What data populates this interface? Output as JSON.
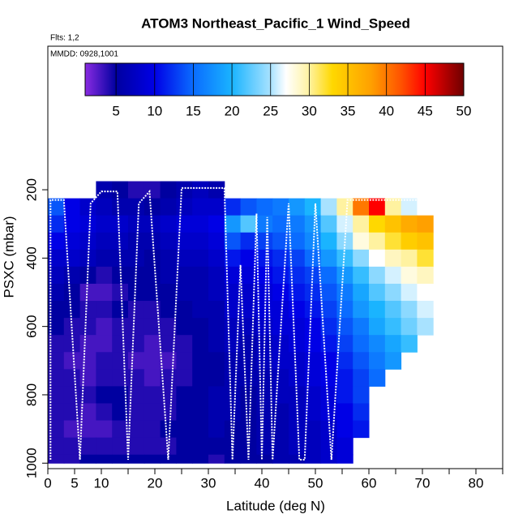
{
  "chart_data": {
    "type": "heatmap",
    "title": "ATOM3 Northeast_Pacific_1 Wind_Speed",
    "subtitle": "Flts: 1,2",
    "annotation": "MMDD: 0928,1001",
    "x_label": "Latitude (deg N)",
    "y_label": "PSXC (mbar)",
    "xlim": [
      0,
      85
    ],
    "ylim": [
      1016,
      -220
    ],
    "xticks": [
      0,
      5,
      10,
      20,
      30,
      40,
      50,
      60,
      70,
      80
    ],
    "xminor_ticks": [
      15,
      25,
      35,
      45,
      55,
      65,
      75,
      85
    ],
    "yticks": [
      200,
      400,
      600,
      800,
      1000
    ],
    "lat_edges": [
      0,
      3,
      6,
      9,
      12,
      15,
      18,
      21,
      24,
      27,
      30,
      33,
      36,
      39,
      42,
      45,
      48,
      51,
      54,
      57,
      60,
      63,
      66,
      69,
      72
    ],
    "pressure_edges": [
      175,
      225,
      275,
      325,
      375,
      425,
      475,
      525,
      575,
      625,
      675,
      725,
      775,
      825,
      875,
      925,
      975,
      1000
    ],
    "values": [
      [
        null,
        null,
        null,
        6,
        5,
        4,
        4,
        5,
        6,
        7,
        6,
        null,
        null,
        null,
        null,
        null,
        null,
        null,
        null,
        null,
        null,
        null,
        null,
        null
      ],
      [
        14,
        10,
        8,
        7,
        6,
        6,
        5,
        6,
        7,
        8,
        8,
        12,
        14,
        15,
        16,
        18,
        20,
        25,
        30,
        40,
        45,
        30,
        26,
        27
      ],
      [
        12,
        10,
        9,
        8,
        8,
        7,
        7,
        8,
        9,
        9,
        10,
        18,
        22,
        16,
        15,
        16,
        18,
        22,
        26,
        30,
        33,
        35,
        37,
        38
      ],
      [
        10,
        9,
        8,
        7,
        7,
        6,
        6,
        7,
        8,
        8,
        9,
        14,
        12,
        13,
        14,
        15,
        17,
        20,
        24,
        28,
        30,
        32,
        34,
        35
      ],
      [
        8,
        8,
        7,
        6,
        6,
        6,
        5,
        6,
        7,
        7,
        8,
        11,
        10,
        11,
        12,
        13,
        15,
        18,
        21,
        24,
        27,
        29,
        30,
        32
      ],
      [
        7,
        6,
        5,
        4,
        5,
        5,
        5,
        6,
        6,
        6,
        7,
        9,
        9,
        10,
        11,
        12,
        13,
        15,
        18,
        21,
        24,
        26,
        28,
        29
      ],
      [
        6,
        5,
        3,
        3,
        4,
        5,
        5,
        5,
        6,
        6,
        7,
        8,
        8,
        9,
        10,
        11,
        12,
        14,
        16,
        19,
        22,
        24,
        26,
        27
      ],
      [
        5,
        5,
        4,
        4,
        5,
        4,
        4,
        5,
        5,
        6,
        6,
        8,
        8,
        9,
        9,
        10,
        11,
        13,
        15,
        18,
        20,
        22,
        24,
        26
      ],
      [
        5,
        4,
        4,
        3,
        4,
        4,
        4,
        4,
        5,
        5,
        6,
        7,
        7,
        8,
        9,
        9,
        10,
        12,
        14,
        16,
        19,
        21,
        23,
        25
      ],
      [
        4,
        4,
        3,
        3,
        4,
        4,
        3,
        4,
        4,
        5,
        6,
        7,
        6,
        7,
        8,
        9,
        10,
        11,
        13,
        15,
        17,
        19,
        21,
        null
      ],
      [
        4,
        3,
        3,
        4,
        4,
        3,
        3,
        3,
        4,
        5,
        5,
        6,
        6,
        7,
        8,
        8,
        9,
        10,
        12,
        14,
        16,
        18,
        null,
        null
      ],
      [
        4,
        4,
        3,
        4,
        4,
        4,
        3,
        4,
        4,
        5,
        5,
        6,
        6,
        6,
        7,
        8,
        9,
        10,
        11,
        13,
        15,
        null,
        null,
        null
      ],
      [
        4,
        4,
        4,
        5,
        5,
        4,
        4,
        4,
        5,
        5,
        6,
        6,
        5,
        6,
        7,
        7,
        8,
        9,
        11,
        13,
        null,
        null,
        null,
        null
      ],
      [
        4,
        4,
        3,
        4,
        5,
        4,
        4,
        4,
        5,
        5,
        6,
        6,
        5,
        6,
        6,
        7,
        8,
        9,
        10,
        12,
        null,
        null,
        null,
        null
      ],
      [
        4,
        3,
        3,
        3,
        4,
        4,
        4,
        5,
        5,
        5,
        6,
        5,
        5,
        6,
        6,
        7,
        7,
        8,
        10,
        11,
        null,
        null,
        null,
        null
      ],
      [
        4,
        4,
        4,
        4,
        4,
        4,
        4,
        4,
        5,
        5,
        5,
        5,
        5,
        6,
        6,
        7,
        7,
        8,
        9,
        null,
        null,
        null,
        null,
        null
      ],
      [
        4,
        4,
        5,
        5,
        5,
        5,
        5,
        5,
        5,
        5,
        4,
        5,
        5,
        5,
        6,
        6,
        7,
        8,
        9,
        null,
        null,
        null,
        null,
        null
      ]
    ],
    "track": {
      "color": "#ffffff",
      "x": [
        0.5,
        0.5,
        3,
        6,
        8,
        10,
        13,
        15,
        17,
        19,
        22.5,
        25,
        33,
        34.5,
        36,
        37.5,
        39,
        40,
        41,
        42,
        45,
        47,
        48,
        50,
        53,
        56,
        70
      ],
      "y": [
        990,
        230,
        230,
        990,
        240,
        205,
        205,
        990,
        240,
        205,
        990,
        195,
        195,
        990,
        420,
        990,
        270,
        990,
        280,
        990,
        240,
        990,
        990,
        240,
        990,
        230,
        230
      ]
    },
    "colorbar": {
      "lim": [
        1,
        50
      ],
      "ticks": [
        5,
        10,
        15,
        20,
        25,
        30,
        35,
        40,
        45,
        50
      ]
    },
    "colormap": [
      [
        1,
        "#8a2be2"
      ],
      [
        5,
        "#0000a0"
      ],
      [
        10,
        "#0000e6"
      ],
      [
        15,
        "#0a6cff"
      ],
      [
        20,
        "#1ab4ff"
      ],
      [
        25,
        "#a8e2ff"
      ],
      [
        27,
        "#ffffff"
      ],
      [
        30,
        "#fff2a0"
      ],
      [
        33,
        "#ffd800"
      ],
      [
        38,
        "#ffa000"
      ],
      [
        42,
        "#ff5000"
      ],
      [
        45,
        "#ff0000"
      ],
      [
        50,
        "#6e0000"
      ]
    ]
  }
}
